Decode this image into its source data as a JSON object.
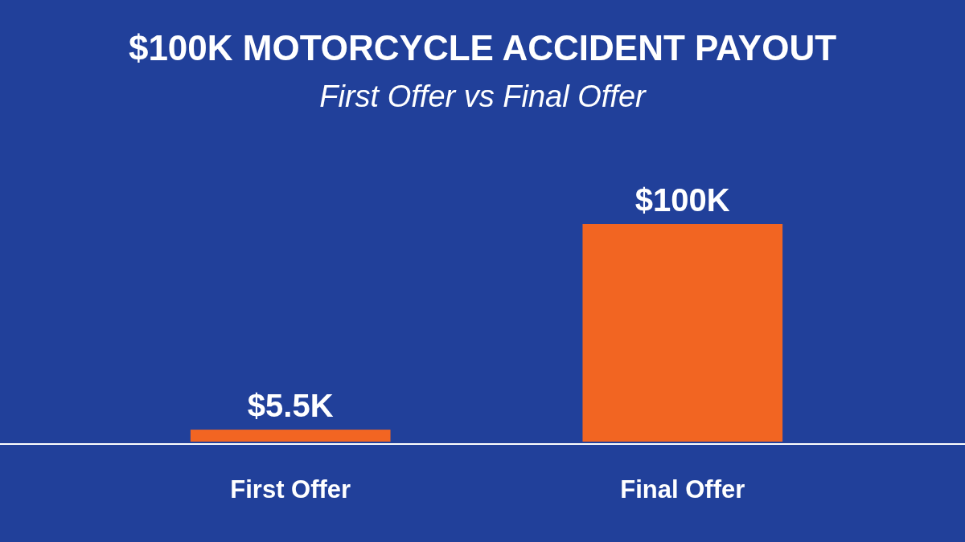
{
  "chart_data": {
    "type": "bar",
    "title": "$100K MOTORCYCLE ACCIDENT PAYOUT",
    "subtitle": "First Offer vs Final Offer",
    "categories": [
      "First Offer",
      "Final Offer"
    ],
    "values": [
      5.5,
      100
    ],
    "value_labels": [
      "$5.5K",
      "$100K"
    ],
    "color": "#f26522"
  }
}
